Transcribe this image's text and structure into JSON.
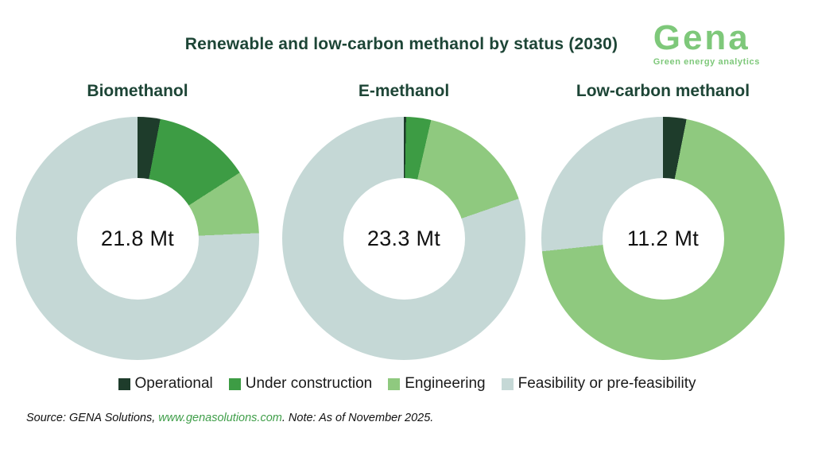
{
  "header": {
    "title": "Renewable and low-carbon methanol by status (2030)",
    "logo": {
      "name": "Gena",
      "tagline": "Green energy analytics",
      "color": "#7ec87a"
    }
  },
  "legend": [
    {
      "label": "Operational",
      "color": "#1e3c2b"
    },
    {
      "label": "Under construction",
      "color": "#3d9c44"
    },
    {
      "label": "Engineering",
      "color": "#8fc97f"
    },
    {
      "label": "Feasibility or pre-feasibility",
      "color": "#c5d8d6"
    }
  ],
  "chart_data": [
    {
      "type": "pie",
      "subtype": "donut",
      "title": "Biomethanol",
      "center_label": "21.8 Mt",
      "total": 21.8,
      "unit": "Mt",
      "categories": [
        "Operational",
        "Under construction",
        "Engineering",
        "Feasibility or pre-feasibility"
      ],
      "values_pct": [
        3.0,
        12.9,
        8.4,
        75.7
      ],
      "start_angle_deg": 0,
      "direction": "clockwise",
      "inner_radius_ratio": 0.5
    },
    {
      "type": "pie",
      "subtype": "donut",
      "title": "E-methanol",
      "center_label": "23.3 Mt",
      "total": 23.3,
      "unit": "Mt",
      "categories": [
        "Operational",
        "Under construction",
        "Engineering",
        "Feasibility or pre-feasibility"
      ],
      "values_pct": [
        0.3,
        3.3,
        16.1,
        80.3
      ],
      "start_angle_deg": 0,
      "direction": "clockwise",
      "inner_radius_ratio": 0.5
    },
    {
      "type": "pie",
      "subtype": "donut",
      "title": "Low-carbon methanol",
      "center_label": "11.2 Mt",
      "total": 11.2,
      "unit": "Mt",
      "categories": [
        "Operational",
        "Under construction",
        "Engineering",
        "Feasibility or pre-feasibility"
      ],
      "values_pct": [
        3.1,
        0,
        70.2,
        26.7
      ],
      "start_angle_deg": 0,
      "direction": "clockwise",
      "inner_radius_ratio": 0.5
    }
  ],
  "footer": {
    "source_prefix": "Source: GENA Solutions, ",
    "source_link": "www.genasolutions.com",
    "source_suffix": ". Note: As of November 2025."
  },
  "colors": {
    "title_text": "#1d4536",
    "center_label_text": "#111111",
    "background": "#ffffff"
  }
}
